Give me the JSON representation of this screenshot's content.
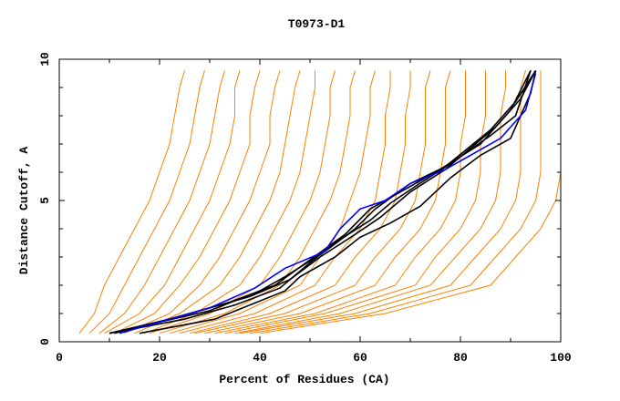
{
  "chart_data": {
    "type": "line",
    "title": "T0973-D1",
    "xlabel": "Percent of Residues (CA)",
    "ylabel": "Distance Cutoff, A",
    "xlim": [
      0,
      100
    ],
    "ylim": [
      0,
      10
    ],
    "x_ticks": [
      "0",
      "20",
      "40",
      "60",
      "80",
      "100"
    ],
    "y_ticks": [
      "0",
      "5",
      "10"
    ],
    "grid": false,
    "colors": {
      "models": "#ff8000",
      "highlight_black": "#000000",
      "highlight_blue": "#0000ff"
    },
    "orange_y_levels": [
      0.3,
      1,
      2,
      3,
      4,
      5,
      6,
      7,
      8,
      9,
      9.6
    ],
    "orange_series_x": [
      [
        4,
        7,
        9,
        12,
        15,
        18,
        20,
        22,
        23,
        24,
        25
      ],
      [
        6,
        10,
        13,
        16,
        19,
        22,
        24,
        26,
        27,
        28,
        29
      ],
      [
        8,
        13,
        17,
        20,
        23,
        26,
        28,
        30,
        31,
        32,
        33
      ],
      [
        9,
        16,
        21,
        24,
        27,
        30,
        32,
        34,
        35,
        35,
        36
      ],
      [
        11,
        19,
        24,
        28,
        31,
        34,
        36,
        38,
        38,
        39,
        40
      ],
      [
        13,
        22,
        28,
        32,
        35,
        38,
        40,
        42,
        42,
        43,
        44
      ],
      [
        15,
        24,
        32,
        36,
        39,
        42,
        44,
        45,
        46,
        47,
        48
      ],
      [
        17,
        27,
        36,
        40,
        43,
        46,
        48,
        49,
        50,
        51,
        51
      ],
      [
        18,
        30,
        40,
        44,
        47,
        50,
        52,
        53,
        54,
        54,
        55
      ],
      [
        20,
        33,
        44,
        48,
        51,
        54,
        56,
        57,
        58,
        58,
        59
      ],
      [
        22,
        36,
        48,
        52,
        56,
        58,
        60,
        61,
        62,
        62,
        63
      ],
      [
        24,
        39,
        51,
        55,
        60,
        63,
        64,
        65,
        65,
        66,
        66
      ],
      [
        26,
        42,
        55,
        59,
        64,
        67,
        68,
        69,
        69,
        70,
        70
      ],
      [
        27,
        45,
        59,
        63,
        68,
        71,
        72,
        73,
        73,
        73,
        74
      ],
      [
        29,
        48,
        63,
        67,
        72,
        75,
        76,
        77,
        77,
        77,
        78
      ],
      [
        31,
        51,
        67,
        71,
        76,
        79,
        80,
        80,
        81,
        81,
        81
      ],
      [
        33,
        53,
        71,
        75,
        80,
        83,
        84,
        84,
        85,
        85,
        85
      ],
      [
        35,
        56,
        74,
        79,
        84,
        87,
        88,
        88,
        88,
        89,
        89
      ],
      [
        36,
        59,
        78,
        83,
        88,
        91,
        92,
        92,
        92,
        92,
        93
      ],
      [
        38,
        62,
        82,
        87,
        92,
        95,
        96,
        96,
        96,
        96,
        96
      ],
      [
        40,
        65,
        86,
        91,
        96,
        99,
        100,
        100,
        100,
        100,
        100
      ]
    ],
    "highlight_series": [
      {
        "name": "black-1",
        "color": "#000000",
        "points": [
          [
            10,
            0.3
          ],
          [
            20,
            0.7
          ],
          [
            30,
            1.1
          ],
          [
            40,
            1.8
          ],
          [
            45,
            2.3
          ],
          [
            53,
            3.2
          ],
          [
            59,
            4.0
          ],
          [
            63,
            4.7
          ],
          [
            70,
            5.6
          ],
          [
            77,
            6.2
          ],
          [
            86,
            7.5
          ],
          [
            91,
            8.5
          ],
          [
            95,
            9.6
          ]
        ]
      },
      {
        "name": "black-2",
        "color": "#000000",
        "points": [
          [
            16,
            0.3
          ],
          [
            31,
            0.8
          ],
          [
            45,
            1.8
          ],
          [
            48,
            2.3
          ],
          [
            55,
            3.0
          ],
          [
            60,
            3.7
          ],
          [
            66,
            4.2
          ],
          [
            72,
            4.8
          ],
          [
            78,
            5.8
          ],
          [
            84,
            6.6
          ],
          [
            90,
            7.2
          ],
          [
            94,
            8.8
          ],
          [
            95,
            9.6
          ]
        ]
      },
      {
        "name": "black-3",
        "color": "#000000",
        "points": [
          [
            10,
            0.3
          ],
          [
            25,
            0.8
          ],
          [
            35,
            1.3
          ],
          [
            44,
            1.9
          ],
          [
            50,
            2.8
          ],
          [
            55,
            3.5
          ],
          [
            62,
            4.3
          ],
          [
            66,
            4.9
          ],
          [
            71,
            5.5
          ],
          [
            78,
            6.3
          ],
          [
            86,
            7.3
          ],
          [
            91,
            8.0
          ],
          [
            94,
            9.6
          ]
        ]
      },
      {
        "name": "black-4",
        "color": "#000000",
        "points": [
          [
            10,
            0.3
          ],
          [
            22,
            0.8
          ],
          [
            34,
            1.4
          ],
          [
            43,
            2.0
          ],
          [
            50,
            2.9
          ],
          [
            57,
            3.8
          ],
          [
            62,
            4.7
          ],
          [
            67,
            5.2
          ],
          [
            75,
            6.0
          ],
          [
            84,
            7.0
          ],
          [
            90,
            8.2
          ],
          [
            94,
            9.6
          ]
        ]
      },
      {
        "name": "black-5",
        "color": "#000000",
        "points": [
          [
            11,
            0.3
          ],
          [
            24,
            0.9
          ],
          [
            38,
            1.6
          ],
          [
            46,
            2.2
          ],
          [
            52,
            3.0
          ],
          [
            59,
            3.8
          ],
          [
            64,
            4.4
          ],
          [
            70,
            5.3
          ],
          [
            77,
            6.1
          ],
          [
            87,
            7.6
          ],
          [
            92,
            8.6
          ],
          [
            95,
            9.6
          ]
        ]
      },
      {
        "name": "blue",
        "color": "#0000ff",
        "points": [
          [
            12,
            0.3
          ],
          [
            20,
            0.7
          ],
          [
            30,
            1.2
          ],
          [
            39,
            1.9
          ],
          [
            45,
            2.6
          ],
          [
            53,
            3.2
          ],
          [
            56,
            4.0
          ],
          [
            60,
            4.7
          ],
          [
            65,
            5.0
          ],
          [
            70,
            5.6
          ],
          [
            77,
            6.1
          ],
          [
            84,
            6.8
          ],
          [
            88,
            7.2
          ],
          [
            93,
            8.2
          ],
          [
            95,
            9.5
          ]
        ]
      }
    ]
  }
}
